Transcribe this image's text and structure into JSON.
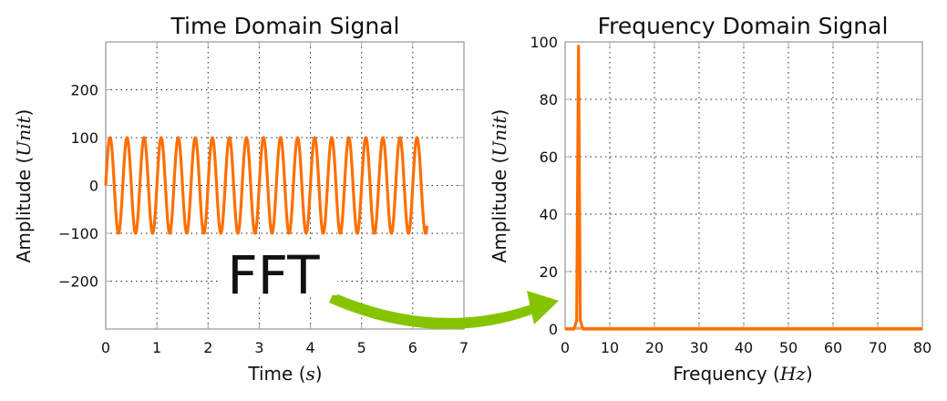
{
  "chart_data": [
    {
      "type": "line",
      "title": "Time Domain Signal",
      "xlabel": "Time",
      "xlabel_unit": "s",
      "ylabel": "Amplitude",
      "ylabel_unit": "Unit",
      "xlim": [
        0,
        7
      ],
      "ylim": [
        -300,
        300
      ],
      "xticks": [
        "0",
        "1",
        "2",
        "3",
        "4",
        "5",
        "6",
        "7"
      ],
      "yticks": [
        "200",
        "100",
        "0",
        "−100",
        "−200"
      ],
      "ytick_values": [
        200,
        100,
        0,
        -100,
        -200
      ],
      "grid": true,
      "series": [
        {
          "function": "sine",
          "amplitude": 100,
          "frequency_hz": 3,
          "x_start": 0,
          "x_end": 6.28,
          "color": "#ff6f00"
        }
      ]
    },
    {
      "type": "line",
      "title": "Frequency Domain Signal",
      "xlabel": "Frequency",
      "xlabel_unit": "Hz",
      "ylabel": "Amplitude",
      "ylabel_unit": "Unit",
      "xlim": [
        0,
        80
      ],
      "ylim": [
        0,
        100
      ],
      "xticks": [
        "0",
        "10",
        "20",
        "30",
        "40",
        "50",
        "60",
        "70",
        "80"
      ],
      "yticks": [
        "100",
        "80",
        "60",
        "40",
        "20",
        "0"
      ],
      "ytick_values": [
        100,
        80,
        60,
        40,
        20,
        0
      ],
      "grid": true,
      "series": [
        {
          "x": [
            0,
            2,
            2.6,
            3,
            3.4,
            4,
            80
          ],
          "y": [
            0,
            0,
            3,
            98.5,
            3,
            0,
            0
          ],
          "color": "#ff6f00"
        }
      ]
    }
  ],
  "annotation": {
    "text": "FFT",
    "arrow_color": "#86c400"
  }
}
